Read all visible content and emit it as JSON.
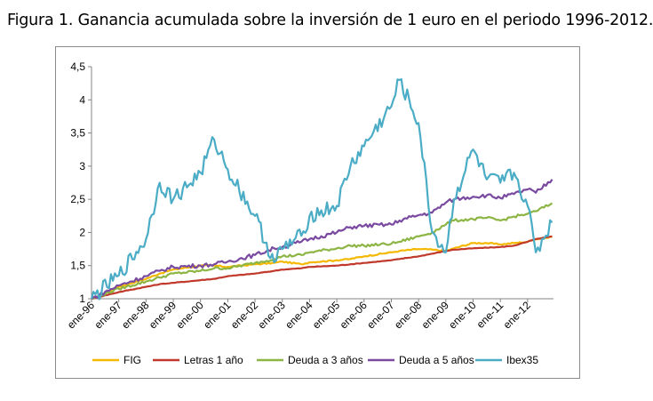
{
  "caption": "Figura 1. Ganancia acumulada sobre la inversión de 1 euro en el periodo 1996-2012.",
  "chart_data": {
    "type": "line",
    "title": "",
    "xlabel": "",
    "ylabel": "",
    "ylim": [
      1,
      4.5
    ],
    "yticks": [
      "1",
      "1,5",
      "2",
      "2,5",
      "3",
      "3,5",
      "4",
      "4,5"
    ],
    "xticks": [
      "ene-96",
      "ene-97",
      "ene-98",
      "ene-99",
      "ene-00",
      "ene-01",
      "ene-02",
      "ene-03",
      "ene-04",
      "ene-05",
      "ene-06",
      "ene-07",
      "ene-08",
      "ene-09",
      "ene-10",
      "ene-11",
      "ene-12"
    ],
    "legend_position": "bottom",
    "grid": false,
    "x": [
      1996.0,
      1997.0,
      1998.0,
      1998.5,
      1999.0,
      2000.0,
      2000.5,
      2001.0,
      2002.0,
      2002.7,
      2003.0,
      2003.7,
      2004.0,
      2005.0,
      2005.5,
      2006.0,
      2007.0,
      2007.3,
      2008.0,
      2008.5,
      2009.0,
      2009.3,
      2010.0,
      2010.5,
      2011.0,
      2011.5,
      2012.0,
      2012.3,
      2012.9
    ],
    "series": [
      {
        "name": "FIG",
        "color": "#f5b800",
        "values": [
          1.0,
          1.18,
          1.3,
          1.38,
          1.44,
          1.5,
          1.5,
          1.48,
          1.52,
          1.54,
          1.56,
          1.52,
          1.55,
          1.58,
          1.6,
          1.64,
          1.7,
          1.72,
          1.75,
          1.74,
          1.72,
          1.76,
          1.84,
          1.84,
          1.82,
          1.84,
          1.86,
          1.9,
          1.93
        ]
      },
      {
        "name": "Letras 1 año",
        "color": "#c0392b",
        "values": [
          1.0,
          1.1,
          1.18,
          1.22,
          1.24,
          1.28,
          1.3,
          1.34,
          1.38,
          1.42,
          1.44,
          1.46,
          1.48,
          1.5,
          1.52,
          1.54,
          1.58,
          1.6,
          1.64,
          1.68,
          1.72,
          1.74,
          1.76,
          1.77,
          1.78,
          1.8,
          1.86,
          1.9,
          1.94
        ]
      },
      {
        "name": "Deuda a 3 años",
        "color": "#8cb544",
        "values": [
          1.0,
          1.15,
          1.26,
          1.32,
          1.38,
          1.42,
          1.46,
          1.46,
          1.54,
          1.6,
          1.64,
          1.66,
          1.7,
          1.76,
          1.8,
          1.8,
          1.83,
          1.86,
          1.94,
          2.0,
          2.12,
          2.18,
          2.2,
          2.22,
          2.18,
          2.24,
          2.28,
          2.32,
          2.44
        ]
      },
      {
        "name": "Deuda a 5 años",
        "color": "#7a4aa0",
        "values": [
          1.0,
          1.2,
          1.34,
          1.42,
          1.48,
          1.5,
          1.52,
          1.56,
          1.66,
          1.76,
          1.78,
          1.86,
          1.9,
          2.0,
          2.08,
          2.1,
          2.12,
          2.18,
          2.26,
          2.3,
          2.45,
          2.5,
          2.54,
          2.56,
          2.52,
          2.58,
          2.65,
          2.6,
          2.8
        ]
      },
      {
        "name": "Ibex35",
        "color": "#4bacc6",
        "values": [
          1.0,
          1.35,
          1.9,
          2.75,
          2.5,
          2.9,
          3.4,
          2.95,
          2.25,
          1.55,
          1.75,
          1.95,
          2.25,
          2.4,
          3.0,
          3.3,
          3.9,
          4.3,
          3.65,
          2.0,
          1.7,
          2.5,
          3.25,
          2.8,
          2.75,
          2.9,
          2.4,
          1.7,
          2.15
        ]
      }
    ]
  }
}
